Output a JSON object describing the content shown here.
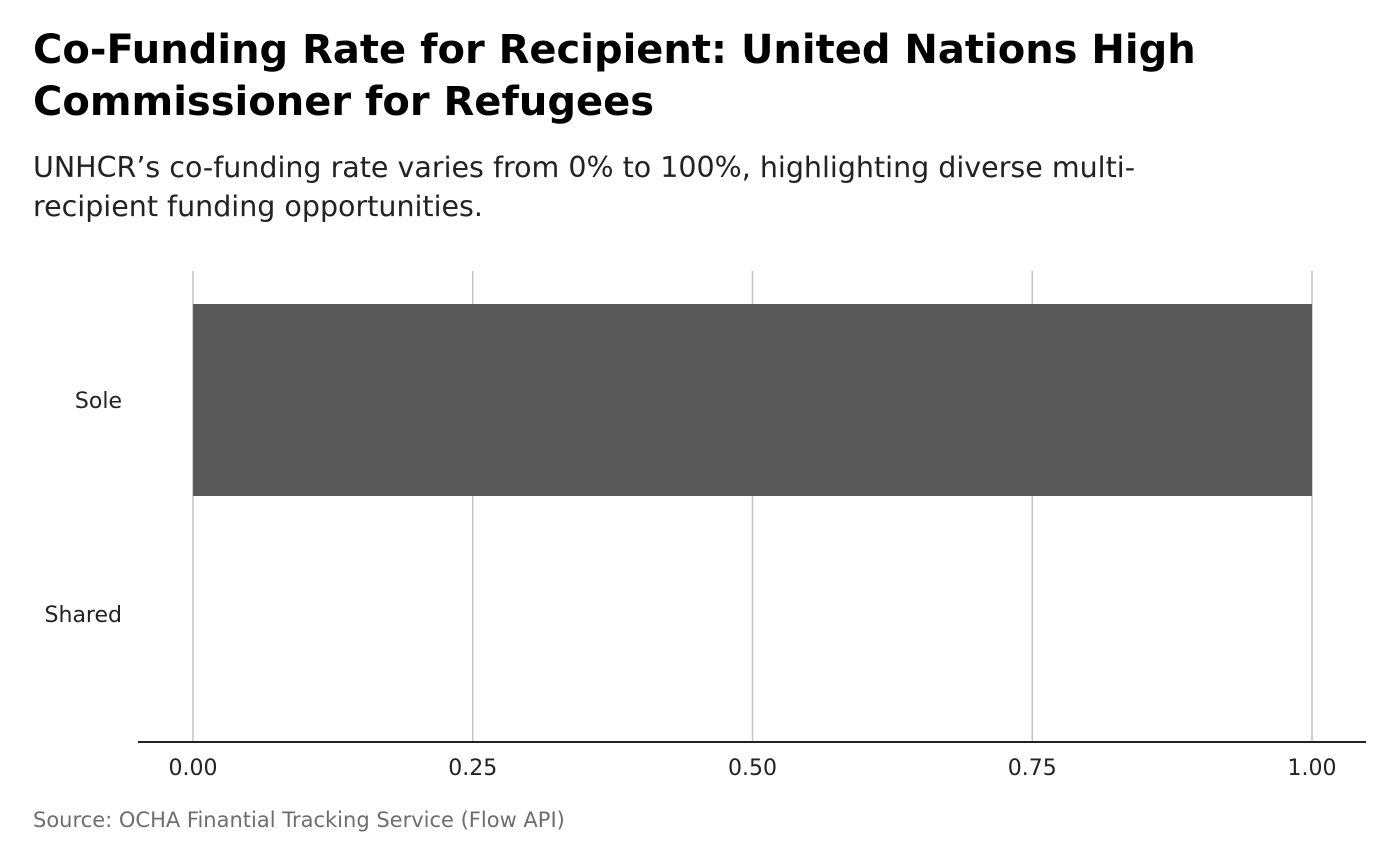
{
  "title": "Co-Funding Rate for Recipient: United Nations High Commissioner for Refugees",
  "subtitle": "UNHCR’s co-funding rate varies from 0% to 100%, highlighting diverse multi-recipient funding opportunities.",
  "caption": "Source: OCHA Finantial Tracking Service (Flow API)",
  "chart_data": {
    "type": "bar",
    "orientation": "horizontal",
    "categories": [
      "Sole",
      "Shared"
    ],
    "values": [
      1.0,
      0.0
    ],
    "xlim": [
      0,
      1
    ],
    "xticks": [
      "0.00",
      "0.25",
      "0.50",
      "0.75",
      "1.00"
    ],
    "xtick_values": [
      0,
      0.25,
      0.5,
      0.75,
      1.0
    ],
    "xlabel": "",
    "ylabel": "",
    "grid": "vertical",
    "bar_color": "#595959"
  }
}
